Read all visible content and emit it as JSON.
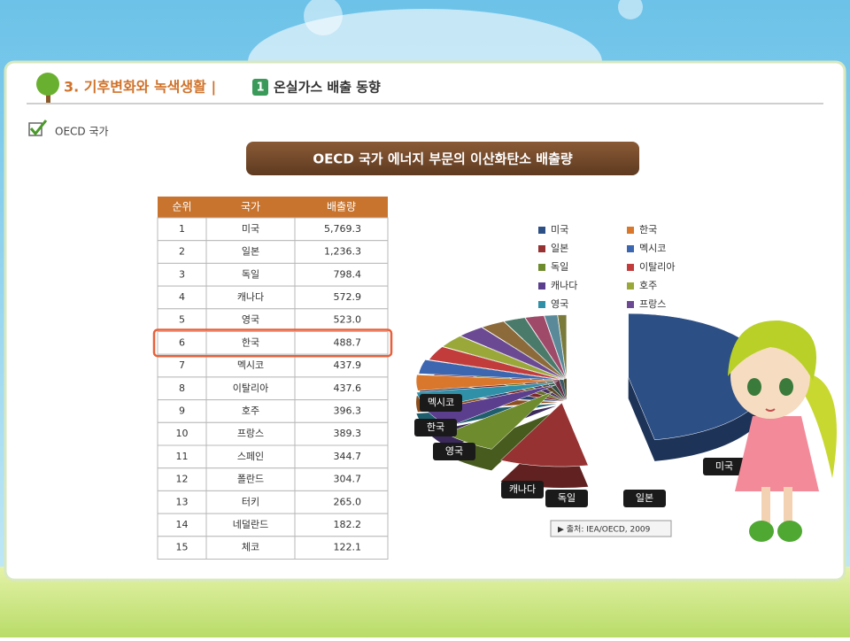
{
  "header": {
    "section": "3. 기후변화와 녹색생활 |",
    "badge": "1",
    "topic": "온실가스 배출 동향"
  },
  "subheader": "OECD 국가",
  "title": "OECD 국가 에너지 부문의 이산화탄소 배출량",
  "table": {
    "columns": [
      "순위",
      "국가",
      "배출량"
    ],
    "rows": [
      [
        "1",
        "미국",
        "5,769.3"
      ],
      [
        "2",
        "일본",
        "1,236.3"
      ],
      [
        "3",
        "독일",
        "798.4"
      ],
      [
        "4",
        "캐나다",
        "572.9"
      ],
      [
        "5",
        "영국",
        "523.0"
      ],
      [
        "6",
        "한국",
        "488.7"
      ],
      [
        "7",
        "멕시코",
        "437.9"
      ],
      [
        "8",
        "이탈리아",
        "437.6"
      ],
      [
        "9",
        "호주",
        "396.3"
      ],
      [
        "10",
        "프랑스",
        "389.3"
      ],
      [
        "11",
        "스페인",
        "344.7"
      ],
      [
        "12",
        "폴란드",
        "304.7"
      ],
      [
        "13",
        "터키",
        "265.0"
      ],
      [
        "14",
        "네덜란드",
        "182.2"
      ],
      [
        "15",
        "체코",
        "122.1"
      ]
    ],
    "highlight_row": 5
  },
  "legend": [
    {
      "name": "미국",
      "color": "#2c4f86"
    },
    {
      "name": "한국",
      "color": "#d9782c"
    },
    {
      "name": "일본",
      "color": "#963232"
    },
    {
      "name": "멕시코",
      "color": "#3d66b0"
    },
    {
      "name": "독일",
      "color": "#6e8c2e"
    },
    {
      "name": "이탈리아",
      "color": "#c23c3c"
    },
    {
      "name": "캐나다",
      "color": "#5b3f8e"
    },
    {
      "name": "호주",
      "color": "#9aa83a"
    },
    {
      "name": "영국",
      "color": "#2f90a8"
    },
    {
      "name": "프랑스",
      "color": "#6b4a93"
    }
  ],
  "callouts": [
    "멕시코",
    "한국",
    "영국",
    "캐나다",
    "독일",
    "일본",
    "미국"
  ],
  "source": "▶ 출처: IEA/OECD, 2009"
}
